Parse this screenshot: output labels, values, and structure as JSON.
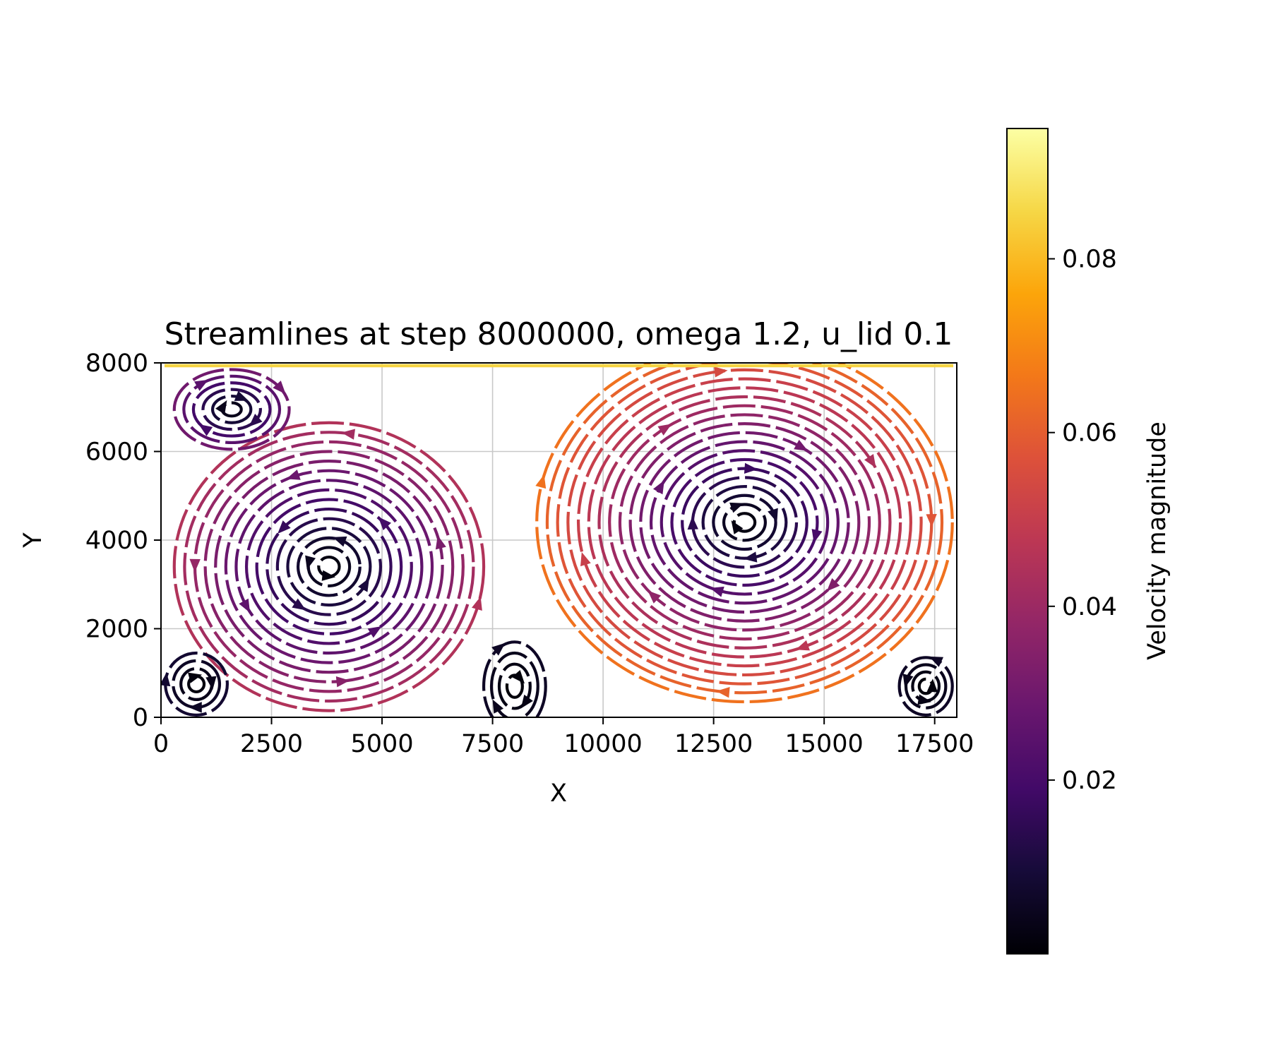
{
  "chart_data": {
    "type": "streamline",
    "title": "Streamlines at step 8000000, omega 1.2, u_lid 0.1",
    "xlabel": "X",
    "ylabel": "Y",
    "xlim": [
      0,
      18000
    ],
    "ylim": [
      0,
      8000
    ],
    "xticks": [
      0,
      2500,
      5000,
      7500,
      10000,
      12500,
      15000,
      17500
    ],
    "xtick_labels": [
      "0",
      "2500",
      "5000",
      "7500",
      "10000",
      "12500",
      "15000",
      "17500"
    ],
    "yticks": [
      0,
      2000,
      4000,
      6000,
      8000
    ],
    "ytick_labels": [
      "0",
      "2000",
      "4000",
      "6000",
      "8000"
    ],
    "grid": true,
    "colormap": "inferno",
    "colorbar": {
      "label": "Velocity magnitude",
      "range": [
        0,
        0.095
      ],
      "ticks": [
        0.02,
        0.04,
        0.06,
        0.08
      ],
      "tick_labels": [
        "0.02",
        "0.04",
        "0.06",
        "0.08"
      ]
    },
    "vortices": [
      {
        "name": "primary-left",
        "center": [
          3800,
          3400
        ],
        "rx": 3500,
        "ry": 3250,
        "direction": "counterclockwise",
        "max_speed": 0.045
      },
      {
        "name": "primary-right",
        "center": [
          13200,
          4400
        ],
        "rx": 4700,
        "ry": 4050,
        "direction": "clockwise",
        "max_speed": 0.065
      },
      {
        "name": "upper-left",
        "center": [
          1600,
          6950
        ],
        "rx": 1300,
        "ry": 900,
        "direction": "clockwise",
        "max_speed": 0.03
      },
      {
        "name": "bottom-left-corner",
        "center": [
          800,
          750
        ],
        "rx": 700,
        "ry": 700,
        "direction": "clockwise",
        "max_speed": 0.008
      },
      {
        "name": "bottom-middle",
        "center": [
          8000,
          700
        ],
        "rx": 700,
        "ry": 1000,
        "direction": "clockwise",
        "max_speed": 0.006
      },
      {
        "name": "bottom-right-corner",
        "center": [
          17300,
          700
        ],
        "rx": 600,
        "ry": 650,
        "direction": "counterclockwise",
        "max_speed": 0.006
      }
    ],
    "lid_speed_near_top": 0.085
  }
}
